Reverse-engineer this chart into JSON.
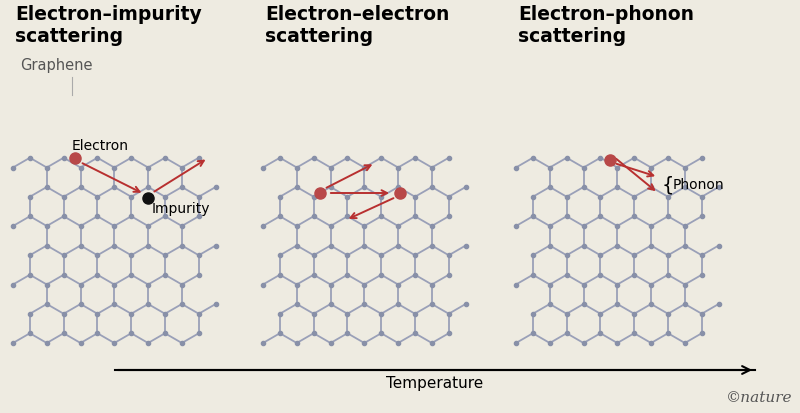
{
  "bg_color": "#eeebe1",
  "graphene_edge_color": "#9aa0b8",
  "graphene_node_color": "#8890a8",
  "electron_color": "#b84848",
  "impurity_color": "#111111",
  "arrow_color": "#b83030",
  "title_fontsize": 13.5,
  "label_fontsize": 10.5,
  "graphene_label": "Graphene",
  "temperature_label": "Temperature",
  "nature_label": "©nature",
  "titles": [
    "Electron–impurity\nscattering",
    "Electron–electron\nscattering",
    "Electron–phonon\nscattering"
  ]
}
